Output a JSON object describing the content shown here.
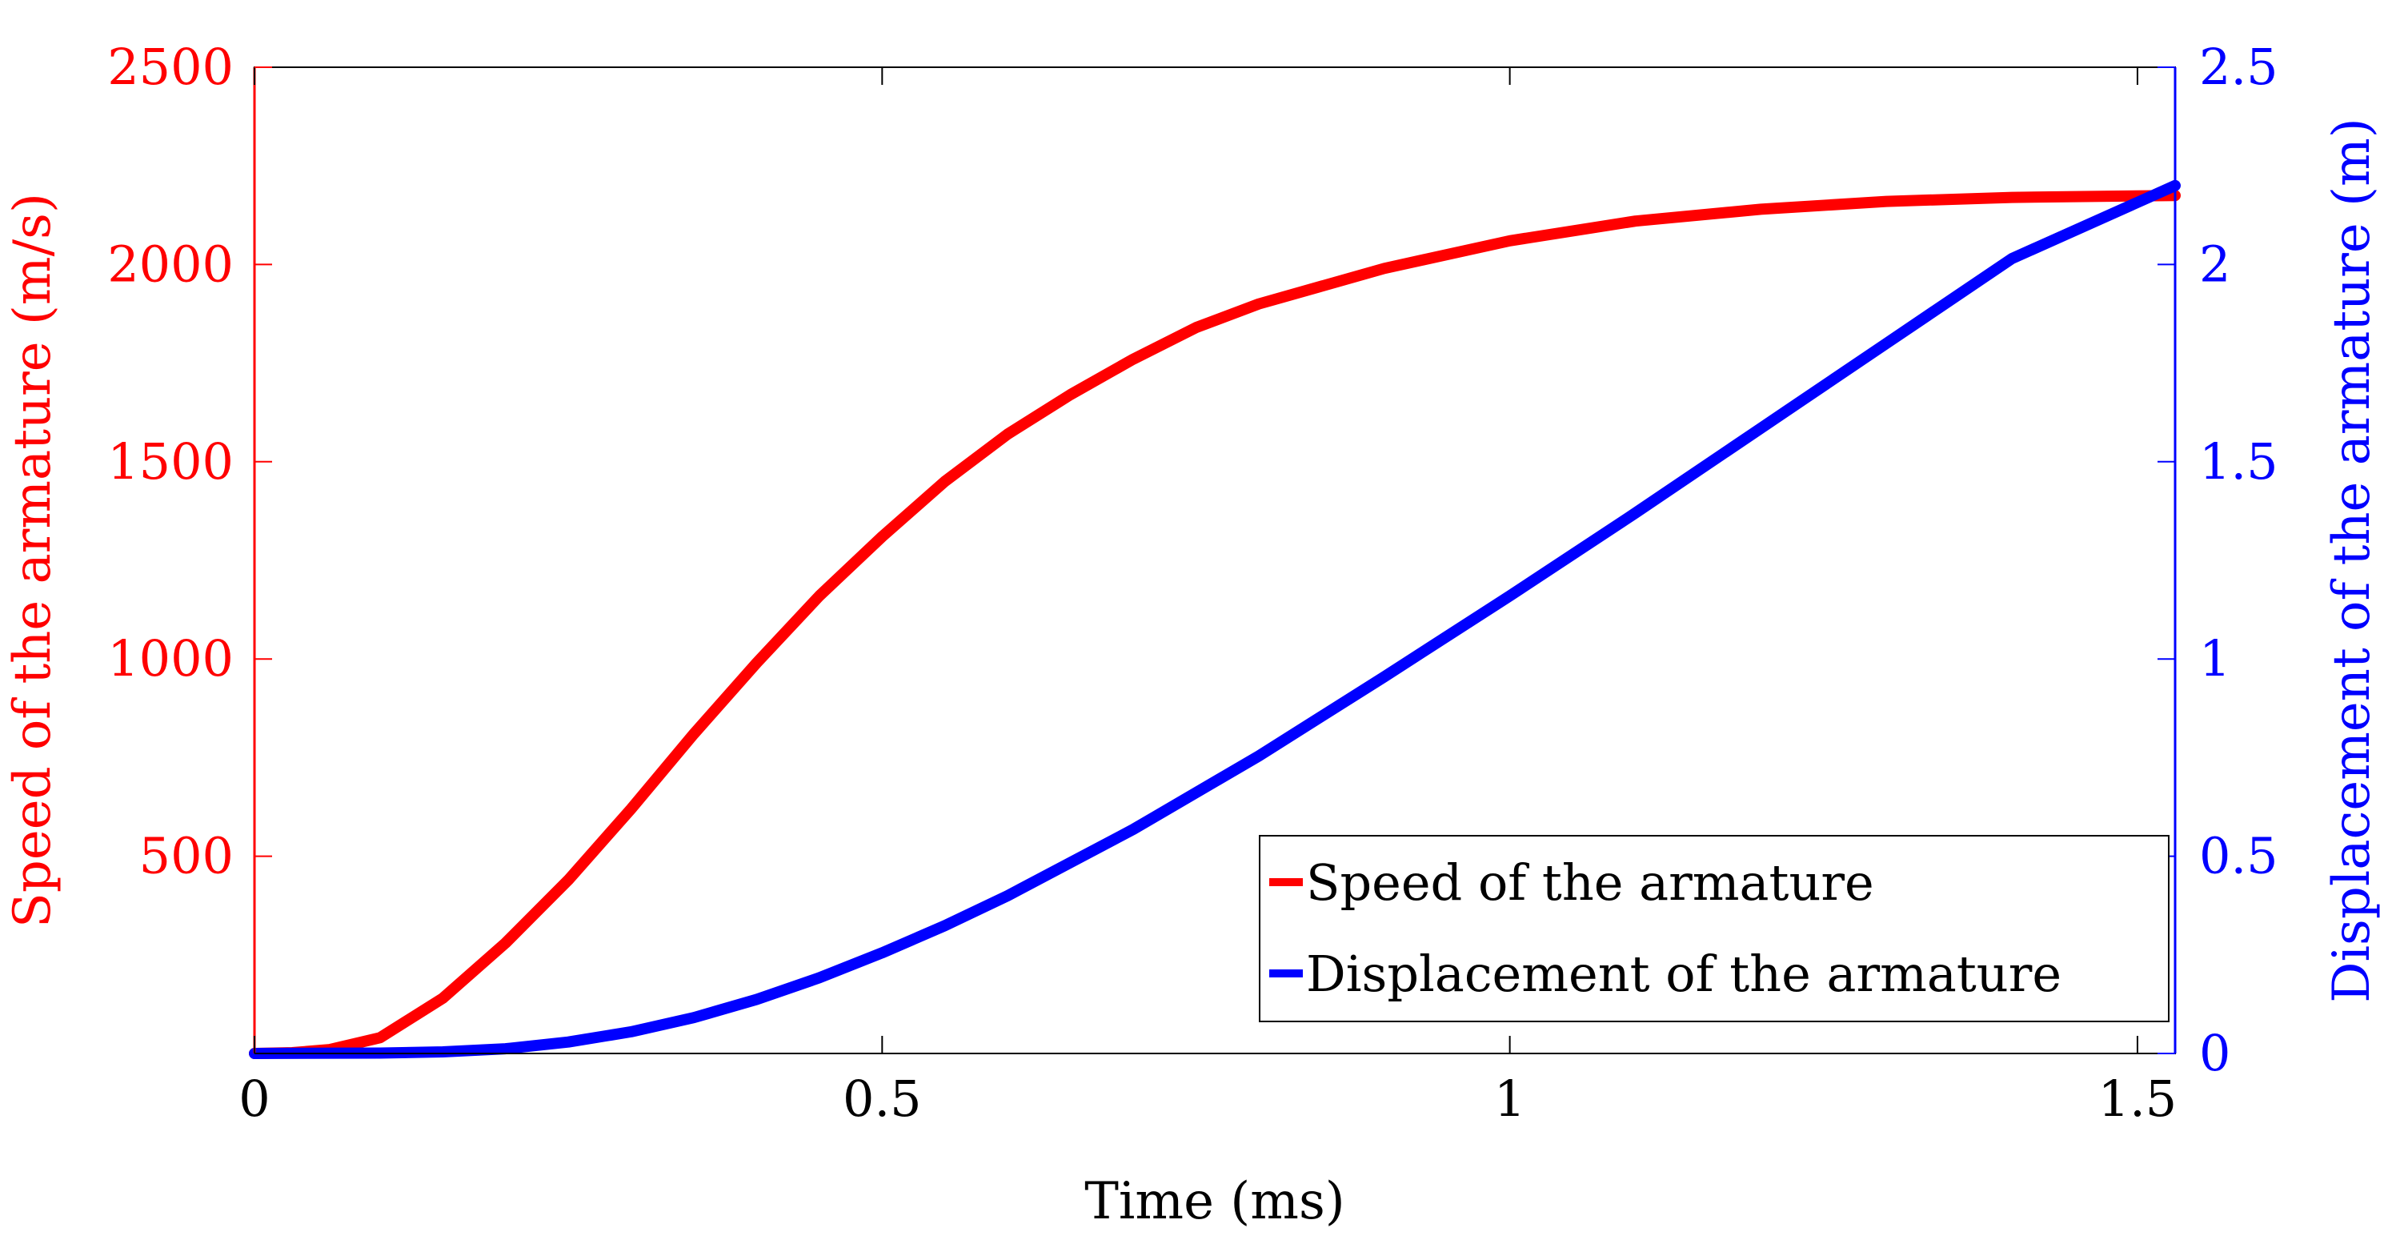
{
  "chart_data": {
    "type": "line",
    "title": "",
    "xlabel": "Time (ms)",
    "ylabel_left": "Speed of the armature (m/s)",
    "ylabel_right": "Displacement of the armature (m)",
    "xlim": [
      0,
      1.53
    ],
    "ylim_left": [
      0,
      2500
    ],
    "ylim_right": [
      0,
      2.5
    ],
    "x_ticks": [
      0,
      0.5,
      1,
      1.5
    ],
    "x_tick_labels": [
      "0",
      "0.5",
      "1",
      "1.5"
    ],
    "y_left_ticks": [
      500,
      1000,
      1500,
      2000,
      2500
    ],
    "y_left_tick_labels": [
      "500",
      "1000",
      "1500",
      "2000",
      "2500"
    ],
    "y_right_ticks": [
      0,
      0.5,
      1,
      1.5,
      2,
      2.5
    ],
    "y_right_tick_labels": [
      "0",
      "0.5",
      "1",
      "1.5",
      "2",
      "2.5"
    ],
    "grid": false,
    "legend_position": "bottom-right",
    "colors": {
      "speed": "#ff0000",
      "displacement": "#0000ff",
      "axis": "#000000"
    },
    "series": [
      {
        "name": "Speed of the armature",
        "axis": "left",
        "color": "#ff0000",
        "x": [
          0,
          0.03,
          0.06,
          0.1,
          0.15,
          0.2,
          0.25,
          0.3,
          0.35,
          0.4,
          0.45,
          0.5,
          0.55,
          0.6,
          0.65,
          0.7,
          0.75,
          0.8,
          0.9,
          1.0,
          1.1,
          1.2,
          1.3,
          1.4,
          1.53
        ],
        "values": [
          0,
          2,
          10,
          40,
          140,
          280,
          440,
          620,
          810,
          990,
          1160,
          1310,
          1450,
          1570,
          1670,
          1760,
          1840,
          1900,
          1990,
          2060,
          2110,
          2140,
          2160,
          2170,
          2175
        ]
      },
      {
        "name": "Displacement of the armature",
        "axis": "right",
        "color": "#0000ff",
        "x": [
          0,
          0.1,
          0.15,
          0.2,
          0.25,
          0.3,
          0.35,
          0.4,
          0.45,
          0.5,
          0.55,
          0.6,
          0.7,
          0.8,
          0.9,
          1.0,
          1.1,
          1.2,
          1.3,
          1.4,
          1.53
        ],
        "values": [
          0,
          0.001,
          0.004,
          0.012,
          0.029,
          0.055,
          0.091,
          0.137,
          0.192,
          0.255,
          0.324,
          0.4,
          0.568,
          0.754,
          0.955,
          1.16,
          1.37,
          1.585,
          1.8,
          2.015,
          2.2
        ]
      }
    ]
  }
}
